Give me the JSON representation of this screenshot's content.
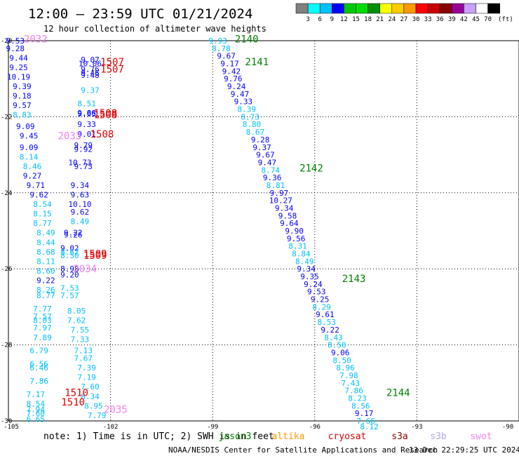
{
  "header": {
    "title": "12:00 — 23:59 UTC 01/21/2024",
    "subtitle": "12 hour collection of altimeter wave heights",
    "unit_label": "(ft)"
  },
  "footer": {
    "note": "note: 1) Time is in UTC; 2) SWH is in feet",
    "credit": "NOAA/NESDIS Center for Satellite Applications and Research",
    "timestamp": "13 Dec 22:29:25 UTC 2024",
    "satellites": [
      {
        "name": "jason3",
        "color": "#008000"
      },
      {
        "name": "altika",
        "color": "#ff9900"
      },
      {
        "name": "cryosat",
        "color": "#dd0000"
      },
      {
        "name": "s3a",
        "color": "#8b0000"
      },
      {
        "name": "s3b",
        "color": "#b0a8e8"
      },
      {
        "name": "swot",
        "color": "#ee82ee"
      }
    ]
  },
  "color_scale": {
    "labels": [
      "3",
      "6",
      "9",
      "12",
      "15",
      "18",
      "21",
      "24",
      "27",
      "30",
      "33",
      "36",
      "39",
      "42",
      "45",
      "70"
    ],
    "colors": [
      "#808080",
      "#00ffff",
      "#00c0ff",
      "#0000ff",
      "#00c800",
      "#00dd00",
      "#009000",
      "#ffff00",
      "#ffcc00",
      "#ff9900",
      "#ff0000",
      "#cc0000",
      "#880000",
      "#990099",
      "#c8a0ff",
      "#ffffff",
      "#000000"
    ]
  },
  "chart_data": {
    "type": "scatter",
    "xlim": [
      -105,
      -90
    ],
    "ylim": [
      -30,
      -20
    ],
    "x_ticks": [
      -105,
      -102,
      -99,
      -96,
      -93,
      -90
    ],
    "x_tick_labels": [
      "-105",
      "-102",
      "-99",
      "-96",
      "-93",
      "-90"
    ],
    "y_ticks": [
      -20,
      -22,
      -24,
      -26,
      -28,
      -30
    ],
    "y_tick_labels": [
      "-20",
      "-22",
      "-24",
      "-26",
      "-28",
      "-30"
    ],
    "grid": true,
    "wave_heights": [
      {
        "x": -104.8,
        "y": -20.0,
        "v": "9.53",
        "c": "#0000ff"
      },
      {
        "x": -104.8,
        "y": -20.2,
        "v": "9.28",
        "c": "#0000ff"
      },
      {
        "x": -104.7,
        "y": -20.45,
        "v": "9.44",
        "c": "#0000ff"
      },
      {
        "x": -104.7,
        "y": -20.7,
        "v": "9.25",
        "c": "#0000ff"
      },
      {
        "x": -104.7,
        "y": -20.95,
        "v": "10.19",
        "c": "#0000ff"
      },
      {
        "x": -104.6,
        "y": -21.2,
        "v": "9.39",
        "c": "#0000ff"
      },
      {
        "x": -104.6,
        "y": -21.45,
        "v": "9.18",
        "c": "#0000ff"
      },
      {
        "x": -104.6,
        "y": -21.7,
        "v": "9.57",
        "c": "#0000ff"
      },
      {
        "x": -104.6,
        "y": -21.95,
        "v": "8.83",
        "c": "#00c0ff"
      },
      {
        "x": -104.5,
        "y": -22.25,
        "v": "9.09",
        "c": "#0000ff"
      },
      {
        "x": -104.4,
        "y": -22.5,
        "v": "9.45",
        "c": "#0000ff"
      },
      {
        "x": -104.4,
        "y": -22.8,
        "v": "9.09",
        "c": "#0000ff"
      },
      {
        "x": -104.4,
        "y": -23.05,
        "v": "8.14",
        "c": "#00c0ff"
      },
      {
        "x": -104.3,
        "y": -23.3,
        "v": "8.46",
        "c": "#00c0ff"
      },
      {
        "x": -104.3,
        "y": -23.55,
        "v": "9.27",
        "c": "#0000ff"
      },
      {
        "x": -104.2,
        "y": -23.8,
        "v": "9.71",
        "c": "#0000ff"
      },
      {
        "x": -104.1,
        "y": -24.05,
        "v": "9.62",
        "c": "#0000ff"
      },
      {
        "x": -104.0,
        "y": -24.3,
        "v": "8.54",
        "c": "#00c0ff"
      },
      {
        "x": -104.0,
        "y": -24.55,
        "v": "8.15",
        "c": "#00c0ff"
      },
      {
        "x": -104.0,
        "y": -24.8,
        "v": "8.77",
        "c": "#00c0ff"
      },
      {
        "x": -103.9,
        "y": -25.05,
        "v": "8.49",
        "c": "#00c0ff"
      },
      {
        "x": -103.9,
        "y": -25.3,
        "v": "8.44",
        "c": "#00c0ff"
      },
      {
        "x": -103.9,
        "y": -25.55,
        "v": "8.68",
        "c": "#00c0ff"
      },
      {
        "x": -103.9,
        "y": -25.8,
        "v": "8.11",
        "c": "#00c0ff"
      },
      {
        "x": -103.9,
        "y": -26.05,
        "v": "8.60",
        "c": "#00c0ff"
      },
      {
        "x": -103.9,
        "y": -26.3,
        "v": "9.22",
        "c": "#0000ff"
      },
      {
        "x": -103.9,
        "y": -26.55,
        "v": "8.26",
        "c": "#00c0ff"
      },
      {
        "x": -103.9,
        "y": -26.7,
        "v": "8.77",
        "c": "#00c0ff"
      },
      {
        "x": -104.0,
        "y": -27.05,
        "v": "7.77",
        "c": "#00c0ff"
      },
      {
        "x": -104.0,
        "y": -27.25,
        "v": "7.57",
        "c": "#00c0ff"
      },
      {
        "x": -104.0,
        "y": -27.35,
        "v": "8.03",
        "c": "#00c0ff"
      },
      {
        "x": -104.0,
        "y": -27.55,
        "v": "7.97",
        "c": "#00c0ff"
      },
      {
        "x": -104.0,
        "y": -27.8,
        "v": "7.89",
        "c": "#00c0ff"
      },
      {
        "x": -104.1,
        "y": -28.15,
        "v": "6.79",
        "c": "#00c0ff"
      },
      {
        "x": -104.1,
        "y": -28.5,
        "v": "6.56",
        "c": "#00c0ff"
      },
      {
        "x": -104.1,
        "y": -28.6,
        "v": "6.46",
        "c": "#00c0ff"
      },
      {
        "x": -104.1,
        "y": -28.95,
        "v": "7.86",
        "c": "#00c0ff"
      },
      {
        "x": -104.2,
        "y": -29.3,
        "v": "7.17",
        "c": "#00c0ff"
      },
      {
        "x": -104.2,
        "y": -29.55,
        "v": "8.54",
        "c": "#00c0ff"
      },
      {
        "x": -104.2,
        "y": -29.7,
        "v": "7.94",
        "c": "#00c0ff"
      },
      {
        "x": -104.2,
        "y": -29.8,
        "v": "7.60",
        "c": "#00c0ff"
      },
      {
        "x": -104.2,
        "y": -29.95,
        "v": "6.65",
        "c": "#00c0ff"
      },
      {
        "x": -102.6,
        "y": -20.5,
        "v": "9.07",
        "c": "#0000ff"
      },
      {
        "x": -102.6,
        "y": -20.6,
        "v": "10.06",
        "c": "#0000ff"
      },
      {
        "x": -102.6,
        "y": -20.75,
        "v": "9.76",
        "c": "#0000ff"
      },
      {
        "x": -102.6,
        "y": -20.85,
        "v": "9.46",
        "c": "#0000ff"
      },
      {
        "x": -102.6,
        "y": -20.9,
        "v": "9.48",
        "c": "#0000ff"
      },
      {
        "x": -102.6,
        "y": -21.3,
        "v": "9.37",
        "c": "#00c0ff"
      },
      {
        "x": -102.7,
        "y": -21.65,
        "v": "8.51",
        "c": "#00c0ff"
      },
      {
        "x": -102.7,
        "y": -21.9,
        "v": "9.86",
        "c": "#0000ff"
      },
      {
        "x": -102.7,
        "y": -21.92,
        "v": "9.95",
        "c": "#0000ff"
      },
      {
        "x": -102.7,
        "y": -22.2,
        "v": "9.33",
        "c": "#0000ff"
      },
      {
        "x": -102.7,
        "y": -22.45,
        "v": "9.01",
        "c": "#0000ff"
      },
      {
        "x": -102.8,
        "y": -22.75,
        "v": "9.79",
        "c": "#0000ff"
      },
      {
        "x": -102.8,
        "y": -22.85,
        "v": "9.92",
        "c": "#0000ff"
      },
      {
        "x": -102.9,
        "y": -23.2,
        "v": "10.73",
        "c": "#0000ff"
      },
      {
        "x": -102.8,
        "y": -23.3,
        "v": "9.73",
        "c": "#0000ff"
      },
      {
        "x": -102.9,
        "y": -23.8,
        "v": "9.34",
        "c": "#0000ff"
      },
      {
        "x": -102.9,
        "y": -24.05,
        "v": "9.63",
        "c": "#0000ff"
      },
      {
        "x": -102.9,
        "y": -24.3,
        "v": "10.10",
        "c": "#0000ff"
      },
      {
        "x": -102.9,
        "y": -24.5,
        "v": "9.62",
        "c": "#0000ff"
      },
      {
        "x": -102.9,
        "y": -24.75,
        "v": "8.49",
        "c": "#00c0ff"
      },
      {
        "x": -103.1,
        "y": -25.05,
        "v": "9.22",
        "c": "#0000ff"
      },
      {
        "x": -103.1,
        "y": -25.1,
        "v": "9.26",
        "c": "#0000ff"
      },
      {
        "x": -103.2,
        "y": -25.45,
        "v": "9.02",
        "c": "#0000ff"
      },
      {
        "x": -103.2,
        "y": -25.55,
        "v": "8.67",
        "c": "#00c0ff"
      },
      {
        "x": -103.2,
        "y": -25.65,
        "v": "8.50",
        "c": "#00c0ff"
      },
      {
        "x": -103.2,
        "y": -26.0,
        "v": "8.98",
        "c": "#0000ff"
      },
      {
        "x": -103.2,
        "y": -26.15,
        "v": "9.20",
        "c": "#0000ff"
      },
      {
        "x": -103.2,
        "y": -26.5,
        "v": "7.53",
        "c": "#00c0ff"
      },
      {
        "x": -103.2,
        "y": -26.7,
        "v": "7.57",
        "c": "#00c0ff"
      },
      {
        "x": -103.0,
        "y": -27.1,
        "v": "8.05",
        "c": "#00c0ff"
      },
      {
        "x": -103.0,
        "y": -27.35,
        "v": "7.62",
        "c": "#00c0ff"
      },
      {
        "x": -102.9,
        "y": -27.6,
        "v": "7.55",
        "c": "#00c0ff"
      },
      {
        "x": -102.9,
        "y": -27.85,
        "v": "7.33",
        "c": "#00c0ff"
      },
      {
        "x": -102.8,
        "y": -28.15,
        "v": "7.13",
        "c": "#00c0ff"
      },
      {
        "x": -102.8,
        "y": -28.35,
        "v": "7.67",
        "c": "#00c0ff"
      },
      {
        "x": -102.7,
        "y": -28.6,
        "v": "7.39",
        "c": "#00c0ff"
      },
      {
        "x": -102.7,
        "y": -28.85,
        "v": "7.19",
        "c": "#00c0ff"
      },
      {
        "x": -102.6,
        "y": -29.1,
        "v": "7.60",
        "c": "#00c0ff"
      },
      {
        "x": -102.6,
        "y": -29.35,
        "v": "8.34",
        "c": "#00c0ff"
      },
      {
        "x": -102.5,
        "y": -29.6,
        "v": "8.95",
        "c": "#00c0ff"
      },
      {
        "x": -102.4,
        "y": -29.85,
        "v": "7.79",
        "c": "#00c0ff"
      },
      {
        "x": -98.85,
        "y": -20.0,
        "v": "9.93",
        "c": "#00c0ff"
      },
      {
        "x": -98.75,
        "y": -20.2,
        "v": "8.78",
        "c": "#00c0ff"
      },
      {
        "x": -98.6,
        "y": -20.4,
        "v": "9.67",
        "c": "#0000ff"
      },
      {
        "x": -98.5,
        "y": -20.6,
        "v": "9.17",
        "c": "#0000ff"
      },
      {
        "x": -98.45,
        "y": -20.8,
        "v": "9.42",
        "c": "#0000ff"
      },
      {
        "x": -98.4,
        "y": -21.0,
        "v": "9.76",
        "c": "#0000ff"
      },
      {
        "x": -98.3,
        "y": -21.2,
        "v": "9.24",
        "c": "#0000ff"
      },
      {
        "x": -98.2,
        "y": -21.4,
        "v": "9.47",
        "c": "#0000ff"
      },
      {
        "x": -98.1,
        "y": -21.6,
        "v": "9.33",
        "c": "#0000ff"
      },
      {
        "x": -98.0,
        "y": -21.8,
        "v": "8.39",
        "c": "#00c0ff"
      },
      {
        "x": -97.9,
        "y": -22.0,
        "v": "8.73",
        "c": "#00c0ff"
      },
      {
        "x": -97.85,
        "y": -22.2,
        "v": "8.80",
        "c": "#00c0ff"
      },
      {
        "x": -97.75,
        "y": -22.4,
        "v": "8.67",
        "c": "#00c0ff"
      },
      {
        "x": -97.6,
        "y": -22.6,
        "v": "9.28",
        "c": "#0000ff"
      },
      {
        "x": -97.55,
        "y": -22.8,
        "v": "9.37",
        "c": "#0000ff"
      },
      {
        "x": -97.45,
        "y": -23.0,
        "v": "9.67",
        "c": "#0000ff"
      },
      {
        "x": -97.4,
        "y": -23.2,
        "v": "9.47",
        "c": "#0000ff"
      },
      {
        "x": -97.3,
        "y": -23.4,
        "v": "8.74",
        "c": "#00c0ff"
      },
      {
        "x": -97.25,
        "y": -23.6,
        "v": "9.36",
        "c": "#0000ff"
      },
      {
        "x": -97.15,
        "y": -23.8,
        "v": "8.81",
        "c": "#00c0ff"
      },
      {
        "x": -97.05,
        "y": -24.0,
        "v": "9.97",
        "c": "#0000ff"
      },
      {
        "x": -97.0,
        "y": -24.2,
        "v": "10.27",
        "c": "#0000ff"
      },
      {
        "x": -96.9,
        "y": -24.4,
        "v": "9.34",
        "c": "#0000ff"
      },
      {
        "x": -96.8,
        "y": -24.6,
        "v": "9.58",
        "c": "#0000ff"
      },
      {
        "x": -96.75,
        "y": -24.8,
        "v": "9.64",
        "c": "#0000ff"
      },
      {
        "x": -96.6,
        "y": -25.0,
        "v": "9.90",
        "c": "#0000ff"
      },
      {
        "x": -96.55,
        "y": -25.2,
        "v": "9.56",
        "c": "#0000ff"
      },
      {
        "x": -96.5,
        "y": -25.4,
        "v": "8.31",
        "c": "#00c0ff"
      },
      {
        "x": -96.4,
        "y": -25.6,
        "v": "8.84",
        "c": "#00c0ff"
      },
      {
        "x": -96.3,
        "y": -25.8,
        "v": "8.49",
        "c": "#00c0ff"
      },
      {
        "x": -96.25,
        "y": -26.0,
        "v": "9.34",
        "c": "#0000ff"
      },
      {
        "x": -96.15,
        "y": -26.2,
        "v": "9.35",
        "c": "#0000ff"
      },
      {
        "x": -96.05,
        "y": -26.4,
        "v": "9.24",
        "c": "#0000ff"
      },
      {
        "x": -95.95,
        "y": -26.6,
        "v": "9.53",
        "c": "#0000ff"
      },
      {
        "x": -95.85,
        "y": -26.8,
        "v": "9.25",
        "c": "#0000ff"
      },
      {
        "x": -95.8,
        "y": -27.0,
        "v": "8.29",
        "c": "#00c0ff"
      },
      {
        "x": -95.7,
        "y": -27.2,
        "v": "9.61",
        "c": "#0000ff"
      },
      {
        "x": -95.65,
        "y": -27.4,
        "v": "8.53",
        "c": "#00c0ff"
      },
      {
        "x": -95.55,
        "y": -27.6,
        "v": "9.22",
        "c": "#0000ff"
      },
      {
        "x": -95.45,
        "y": -27.8,
        "v": "8.43",
        "c": "#00c0ff"
      },
      {
        "x": -95.35,
        "y": -28.0,
        "v": "8.50",
        "c": "#00c0ff"
      },
      {
        "x": -95.25,
        "y": -28.2,
        "v": "9.06",
        "c": "#0000ff"
      },
      {
        "x": -95.2,
        "y": -28.4,
        "v": "8.50",
        "c": "#00c0ff"
      },
      {
        "x": -95.1,
        "y": -28.6,
        "v": "8.96",
        "c": "#00c0ff"
      },
      {
        "x": -95.0,
        "y": -28.8,
        "v": "7.98",
        "c": "#00c0ff"
      },
      {
        "x": -94.95,
        "y": -29.0,
        "v": "7.43",
        "c": "#00c0ff"
      },
      {
        "x": -94.85,
        "y": -29.2,
        "v": "7.86",
        "c": "#00c0ff"
      },
      {
        "x": -94.75,
        "y": -29.4,
        "v": "8.23",
        "c": "#00c0ff"
      },
      {
        "x": -94.65,
        "y": -29.6,
        "v": "8.56",
        "c": "#00c0ff"
      },
      {
        "x": -94.55,
        "y": -29.8,
        "v": "9.17",
        "c": "#0000ff"
      },
      {
        "x": -94.5,
        "y": -30.0,
        "v": "7.66",
        "c": "#00c0ff"
      },
      {
        "x": -94.4,
        "y": -30.15,
        "v": "8.12",
        "c": "#00c0ff"
      }
    ],
    "pass_labels": [
      {
        "x": -104.2,
        "y": -19.95,
        "t": "2032",
        "c": "#ee82ee"
      },
      {
        "x": -101.95,
        "y": -20.55,
        "t": "1507",
        "c": "#dd0000"
      },
      {
        "x": -101.95,
        "y": -20.75,
        "t": "1507",
        "c": "#dd0000"
      },
      {
        "x": -102.15,
        "y": -21.9,
        "t": "1508",
        "c": "#dd0000"
      },
      {
        "x": -102.15,
        "y": -21.95,
        "t": "1508",
        "c": "#dd0000"
      },
      {
        "x": -102.25,
        "y": -22.45,
        "t": "1508",
        "c": "#dd0000"
      },
      {
        "x": -103.2,
        "y": -22.5,
        "t": "2033",
        "c": "#ee82ee"
      },
      {
        "x": -102.45,
        "y": -25.6,
        "t": "1509",
        "c": "#dd0000"
      },
      {
        "x": -102.45,
        "y": -25.65,
        "t": "1509",
        "c": "#dd0000"
      },
      {
        "x": -102.75,
        "y": -26.0,
        "t": "2034",
        "c": "#ee82ee"
      },
      {
        "x": -103.0,
        "y": -29.25,
        "t": "1510",
        "c": "#dd0000"
      },
      {
        "x": -103.1,
        "y": -29.5,
        "t": "1510",
        "c": "#dd0000"
      },
      {
        "x": -101.85,
        "y": -29.7,
        "t": "2035",
        "c": "#ee82ee"
      },
      {
        "x": -98.0,
        "y": -19.95,
        "t": "2140",
        "c": "#008000"
      },
      {
        "x": -97.7,
        "y": -20.55,
        "t": "2141",
        "c": "#008000"
      },
      {
        "x": -96.1,
        "y": -23.35,
        "t": "2142",
        "c": "#008000"
      },
      {
        "x": -94.85,
        "y": -26.25,
        "t": "2143",
        "c": "#008000"
      },
      {
        "x": -93.55,
        "y": -29.25,
        "t": "2144",
        "c": "#008000"
      }
    ]
  }
}
